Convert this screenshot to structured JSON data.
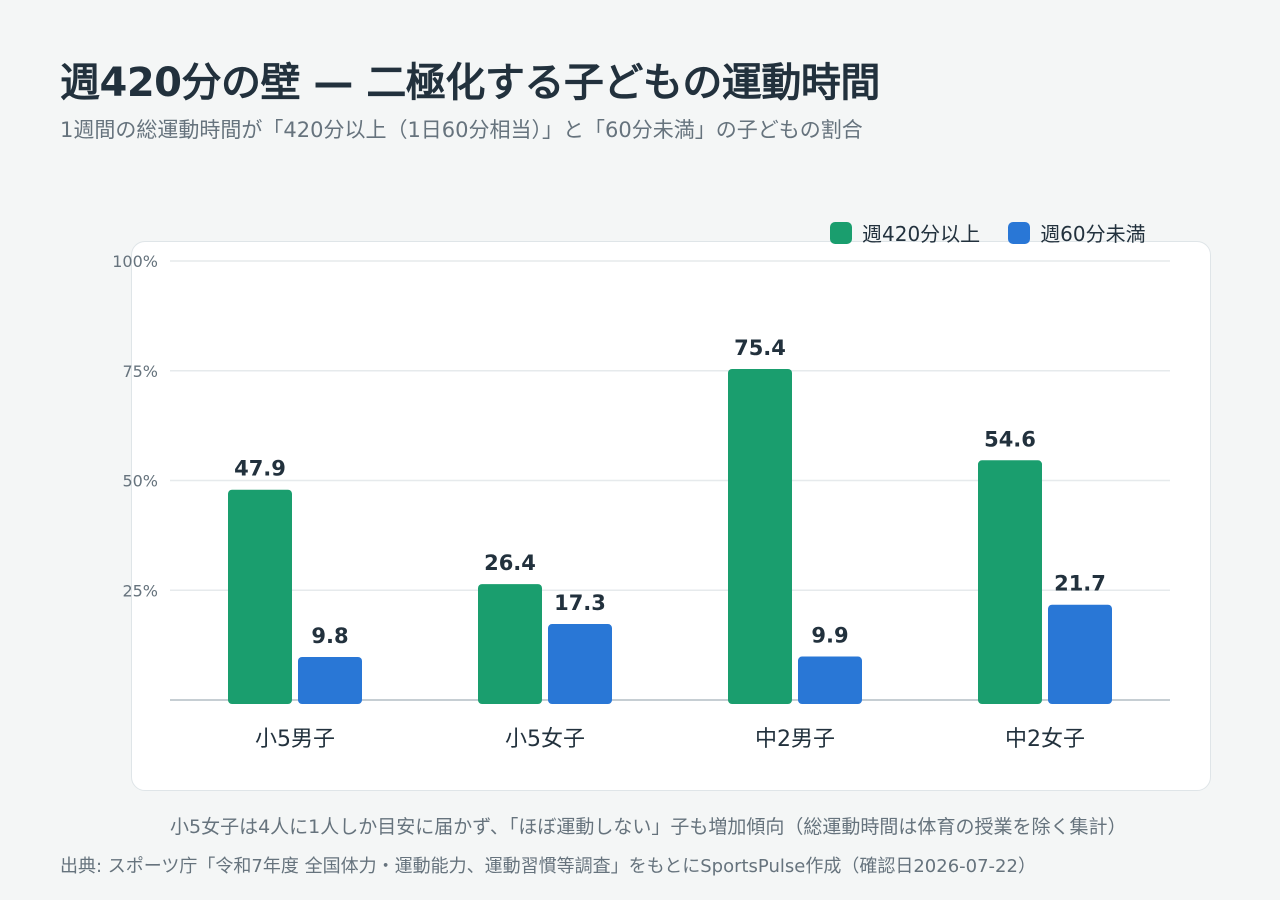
{
  "title": "週420分の壁 — 二極化する子どもの運動時間",
  "subtitle": "1週間の総運動時間が「420分以上（1日60分相当）」と「60分未満」の子どもの割合",
  "legend": {
    "items": [
      {
        "label": "週420分以上",
        "color": "#1a9e6e"
      },
      {
        "label": "週60分未満",
        "color": "#2977d6"
      }
    ]
  },
  "note": "小5女子は4人に1人しか目安に届かず、「ほぼ運動しない」子も増加傾向（総運動時間は体育の授業を除く集計）",
  "source": "出典: スポーツ庁「令和7年度 全国体力・運動能力、運動習慣等調査」をもとにSportsPulse作成（確認日2026-07-22）",
  "chart_data": {
    "type": "bar",
    "categories": [
      "小5男子",
      "小5女子",
      "中2男子",
      "中2女子"
    ],
    "series": [
      {
        "name": "週420分以上",
        "values": [
          47.9,
          26.4,
          75.4,
          54.6
        ],
        "color": "#1a9e6e"
      },
      {
        "name": "週60分未満",
        "values": [
          9.8,
          17.3,
          9.9,
          21.7
        ],
        "color": "#2977d6"
      }
    ],
    "yticks": [
      25,
      50,
      75,
      100
    ],
    "ytick_labels": [
      "25%",
      "50%",
      "75%",
      "100%"
    ],
    "ylim": [
      0,
      100
    ],
    "grid": true,
    "legend_position": "top-right"
  }
}
